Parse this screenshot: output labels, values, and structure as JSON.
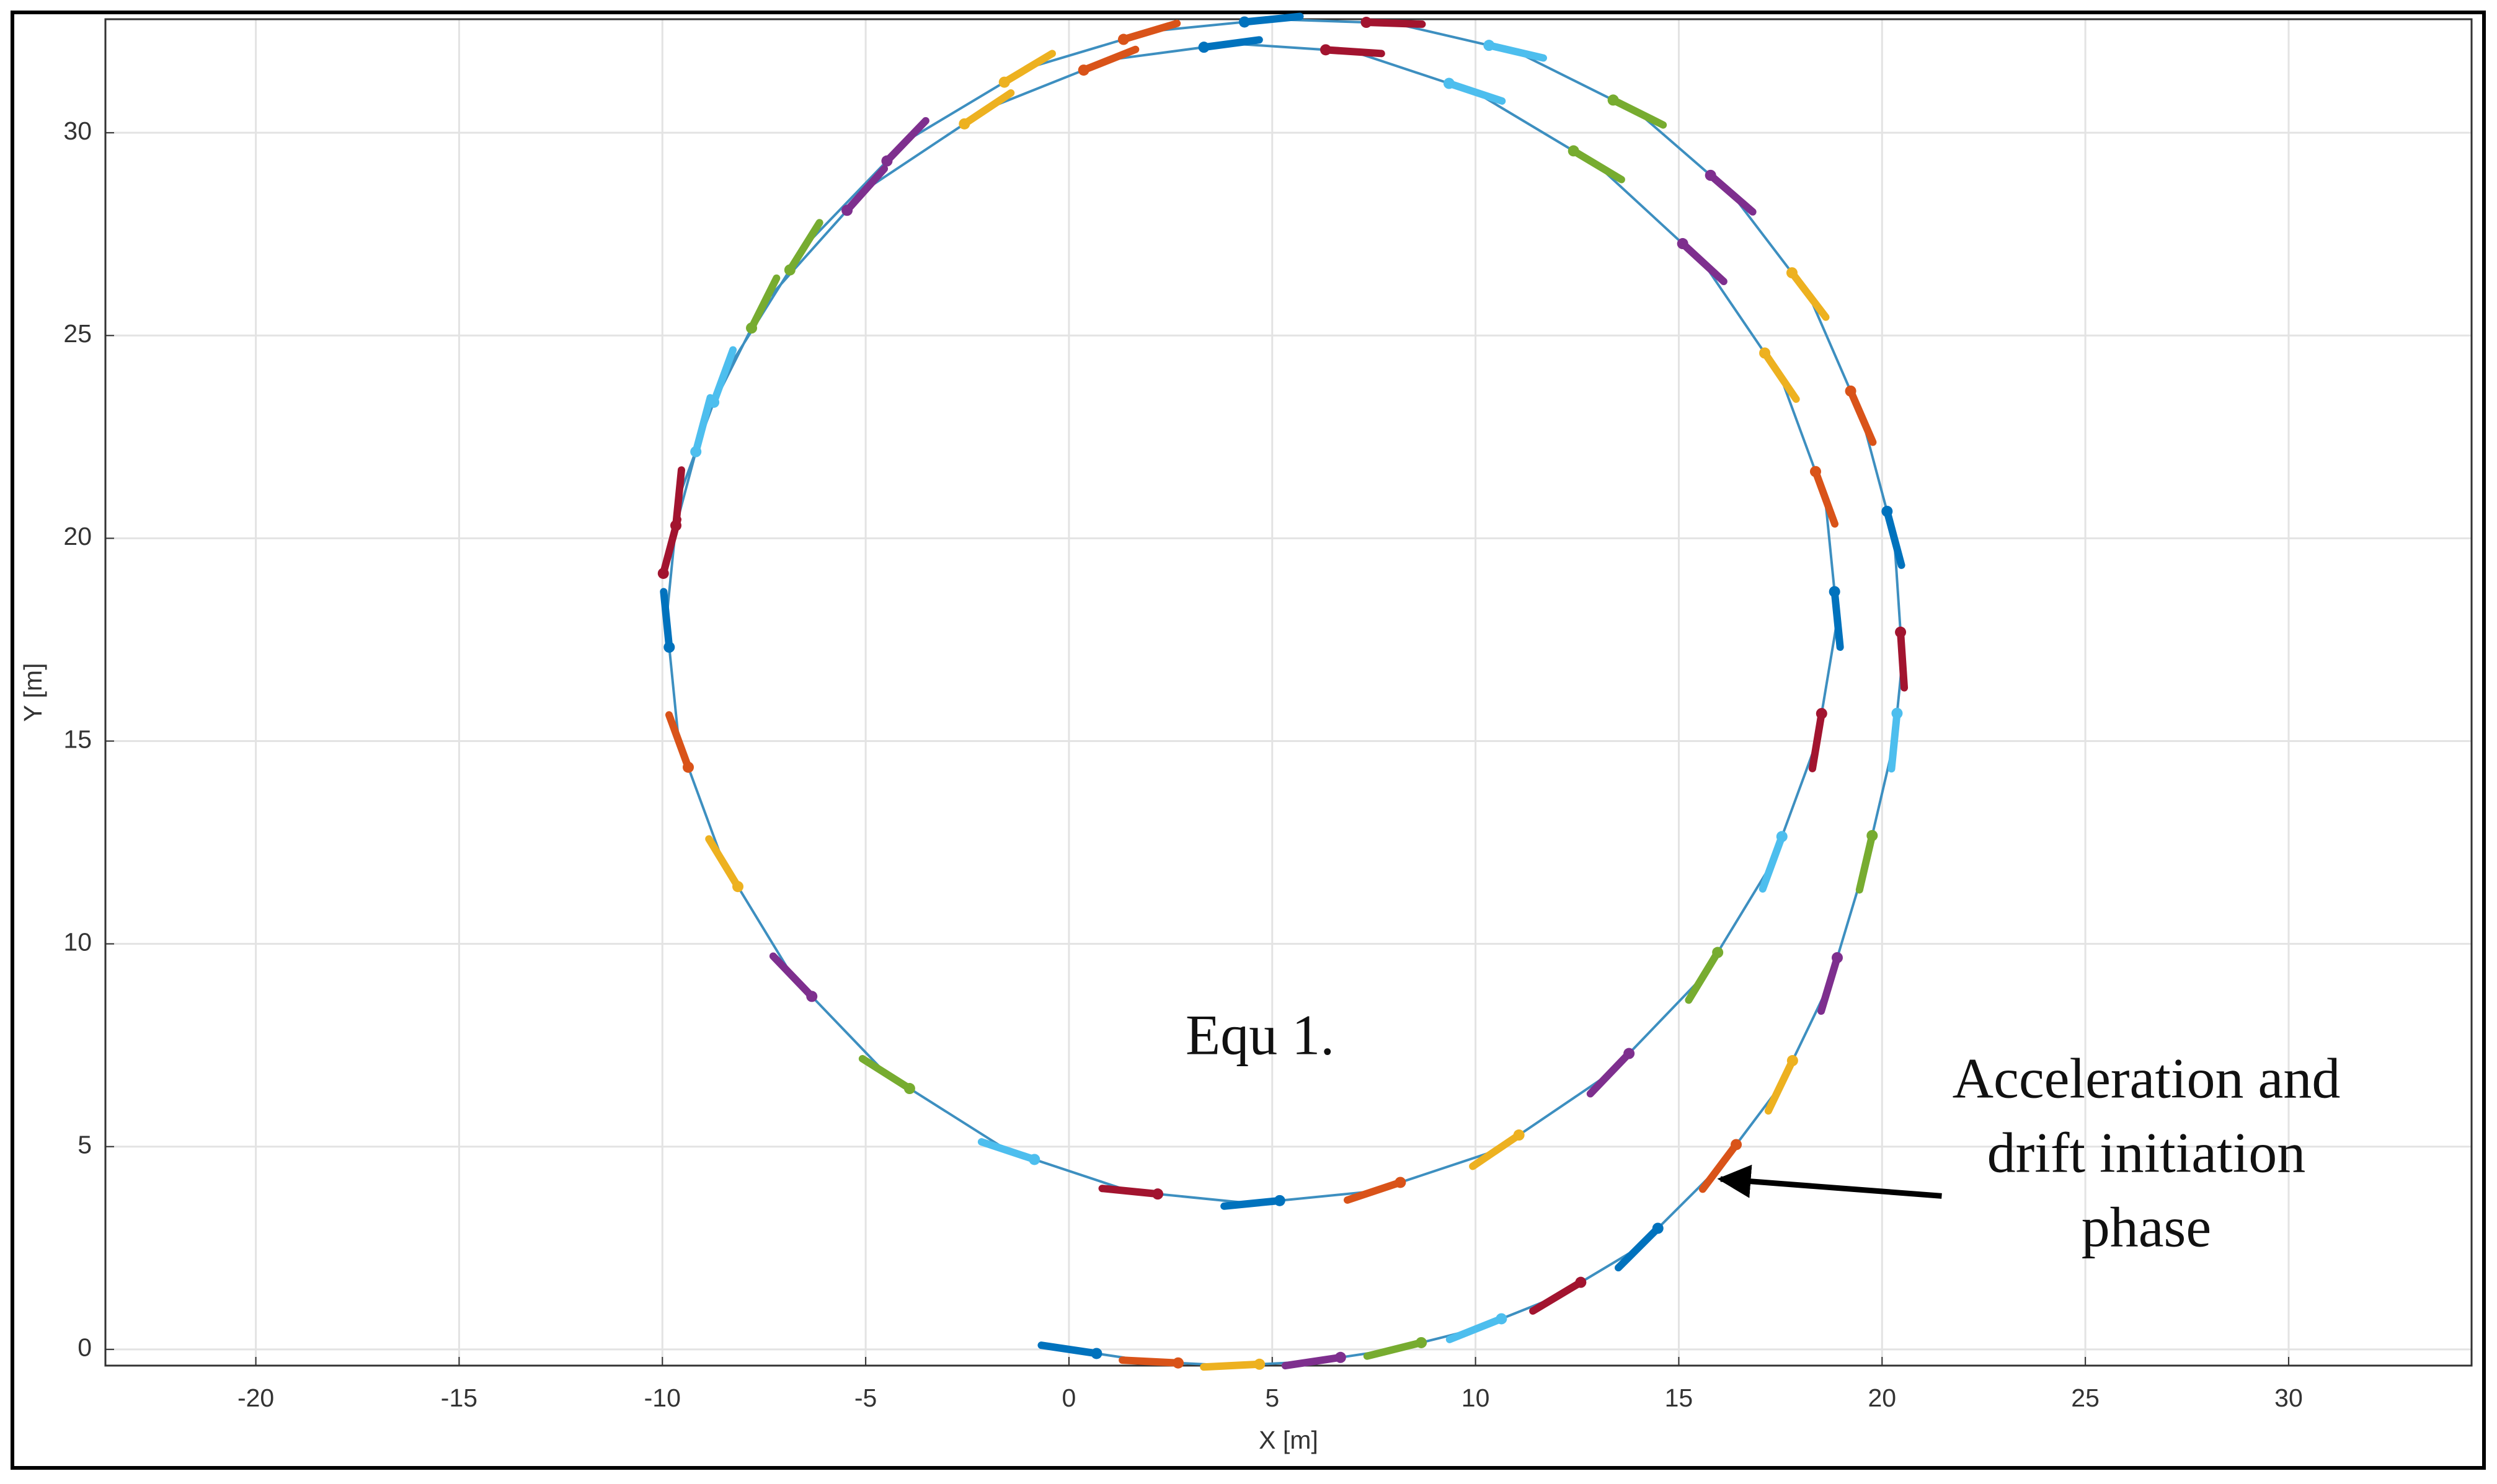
{
  "chart_data": {
    "type": "line",
    "x_label": "X [m]",
    "y_label": "Y [m]",
    "xlim": [
      -23.7,
      34.5
    ],
    "ylim": [
      -0.4,
      32.8
    ],
    "xticks": [
      -20,
      -15,
      -10,
      -5,
      0,
      5,
      10,
      15,
      20,
      25,
      30
    ],
    "yticks": [
      0,
      5,
      10,
      15,
      20,
      25,
      30
    ],
    "grid": true,
    "series": [
      {
        "color": "#3d8fc0",
        "x": [
          0,
          2,
          4,
          6,
          8,
          10,
          12,
          14,
          16,
          17.5,
          18.7,
          19.6,
          20.3,
          20.5,
          20.3,
          19.5,
          18.2,
          16.3,
          14,
          11,
          8,
          5,
          2,
          -1,
          -4,
          -6.5,
          -8.5,
          -9.6,
          -9.9,
          -9.6,
          -8.5,
          -6.8,
          -4.5,
          -1.5,
          1.5,
          4.5,
          7.5,
          10.5,
          13.3,
          15.6,
          17.3,
          18.4,
          18.9,
          18.6,
          17.5,
          15.6,
          13,
          10,
          7,
          4,
          1,
          -2,
          -5,
          -7.5,
          -9,
          -9.8
        ],
        "y": [
          0,
          -0.3,
          -0.4,
          -0.3,
          0,
          0.5,
          1.3,
          2.5,
          4.5,
          6.5,
          9,
          12,
          15,
          17,
          20,
          23,
          26,
          28.5,
          30.5,
          32,
          32.7,
          32.8,
          32.5,
          31.6,
          29.8,
          27.2,
          24,
          21,
          18,
          15,
          12,
          9.2,
          6.8,
          4.9,
          3.9,
          3.6,
          3.9,
          4.9,
          6.8,
          9.2,
          12,
          15,
          18,
          21,
          24,
          26.8,
          29.2,
          31,
          32,
          32.2,
          31.8,
          30.6,
          28.6,
          25.8,
          22.8,
          19.8
        ]
      }
    ],
    "marker_colors": [
      "#0072BD",
      "#D95319",
      "#EDB120",
      "#7E2F8E",
      "#77AC30",
      "#4DBEEE",
      "#A2142F"
    ],
    "annotations": [
      {
        "text": [
          "Equ 1."
        ],
        "xy": [
          4.7,
          7.6
        ]
      },
      {
        "text": [
          "Acceleration and",
          "drift initiation",
          "phase"
        ],
        "xy": [
          26.5,
          4.7
        ],
        "arrow_xy": [
          15.8,
          4.2
        ]
      }
    ]
  }
}
